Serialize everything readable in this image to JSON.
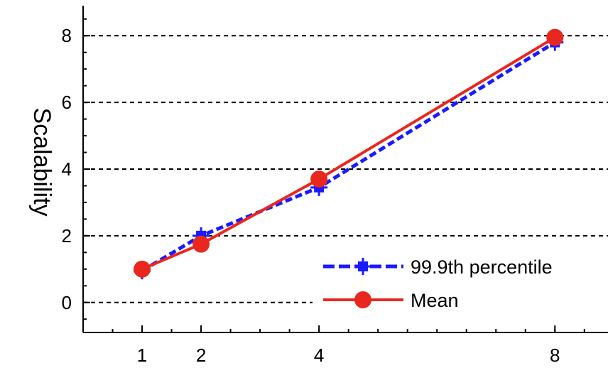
{
  "chart_data": {
    "type": "line",
    "title": "",
    "xlabel": "",
    "ylabel": "Scalability",
    "x": [
      1,
      2,
      4,
      8
    ],
    "x_ticks": [
      "1",
      "2",
      "4",
      "8"
    ],
    "y_ticks": [
      "0",
      "2",
      "4",
      "6",
      "8"
    ],
    "xlim": [
      0,
      8.9
    ],
    "ylim": [
      -0.9,
      8.9
    ],
    "grid": "horizontal dashed",
    "legend": "bottom-right",
    "series": [
      {
        "name": "99.9th percentile",
        "values": [
          0.95,
          2.0,
          3.45,
          7.8
        ],
        "color": "#1a1aff",
        "style": "dashed",
        "marker": "star"
      },
      {
        "name": "Mean",
        "values": [
          1.0,
          1.75,
          3.7,
          7.95
        ],
        "color": "#e8281e",
        "style": "solid",
        "marker": "circle"
      }
    ]
  }
}
